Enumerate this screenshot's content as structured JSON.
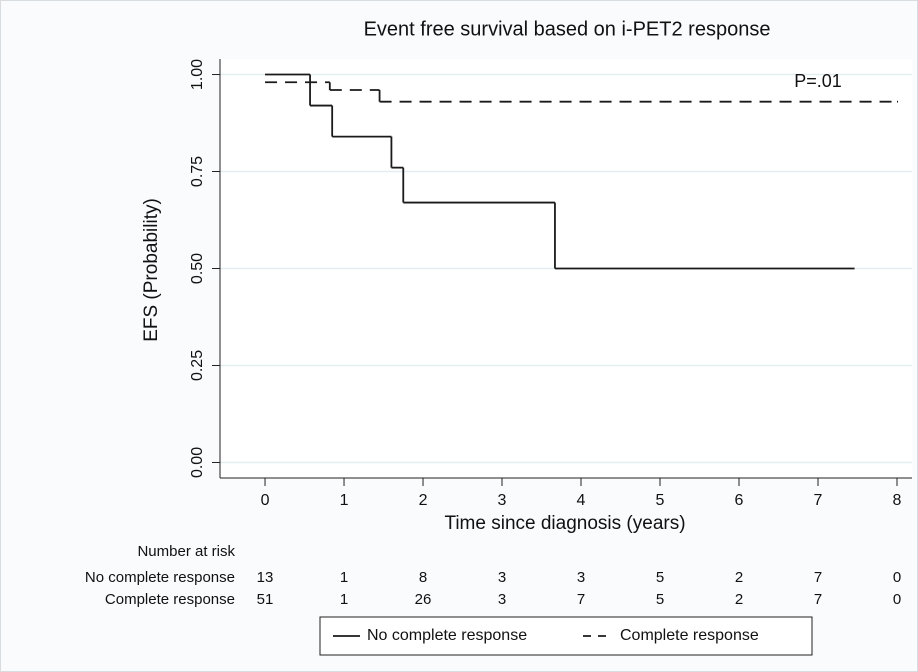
{
  "chart_data": {
    "type": "step",
    "title": "Event free survival based on i-PET2 response",
    "x_label": "Time since diagnosis (years)",
    "y_label": "EFS (Probability)",
    "xlim": [
      -0.57,
      8.19
    ],
    "ylim": [
      -0.04,
      1.04
    ],
    "xticks": [
      0,
      1,
      2,
      3,
      4,
      5,
      6,
      7,
      8
    ],
    "yticks": [
      {
        "value": 0,
        "label": "0.00"
      },
      {
        "value": 0.25,
        "label": "0.25"
      },
      {
        "value": 0.5,
        "label": "0.50"
      },
      {
        "value": 0.75,
        "label": "0.75"
      },
      {
        "value": 1,
        "label": "1.00"
      }
    ],
    "grid": true,
    "legend": "bottom",
    "annotations": [
      {
        "text": "P=.01",
        "x": 7.0,
        "y": 0.98
      }
    ],
    "series": [
      {
        "name": "No complete response",
        "color": "#1a1a1a",
        "style": "solid",
        "x": [
          0,
          0.57,
          0.85,
          1.6,
          1.75,
          3.67,
          7.45
        ],
        "values": [
          1,
          0.92,
          0.84,
          0.76,
          0.67,
          0.5,
          0.5
        ]
      },
      {
        "name": "Complete response",
        "color": "#1a1a1a",
        "style": "dashed",
        "x": [
          0,
          0.82,
          1.45,
          8.0
        ],
        "values": [
          0.98,
          0.96,
          0.93,
          0.93
        ]
      }
    ],
    "risk_table": {
      "title": "Number at risk",
      "rows": [
        {
          "label": "No complete response",
          "values": [
            "13",
            "1",
            "8",
            "3",
            "3",
            "5",
            "2",
            "7",
            "0"
          ]
        },
        {
          "label": "Complete response",
          "values": [
            "51",
            "1",
            "26",
            "3",
            "7",
            "5",
            "2",
            "7",
            "0"
          ]
        }
      ]
    }
  }
}
